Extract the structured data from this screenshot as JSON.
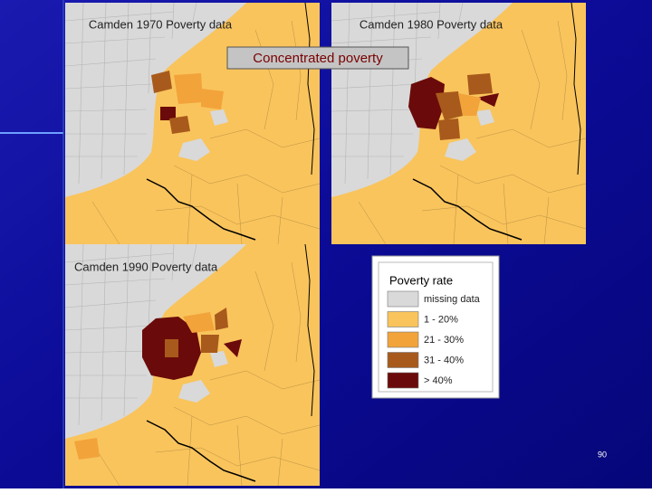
{
  "maps": [
    {
      "title": "Camden 1970 Poverty data"
    },
    {
      "title": "Camden 1980 Poverty data"
    },
    {
      "title": "Camden 1990 Poverty data"
    }
  ],
  "callout": "Concentrated poverty",
  "legend": {
    "title": "Poverty rate",
    "items": [
      {
        "label": "missing data",
        "color": "#d9d9d9"
      },
      {
        "label": "1 - 20%",
        "color": "#f9c45c"
      },
      {
        "label": "21 - 30%",
        "color": "#f2a33a"
      },
      {
        "label": "31 - 40%",
        "color": "#a85a1c"
      },
      {
        "label": "> 40%",
        "color": "#6b0a0a"
      }
    ]
  },
  "page_number": "90"
}
